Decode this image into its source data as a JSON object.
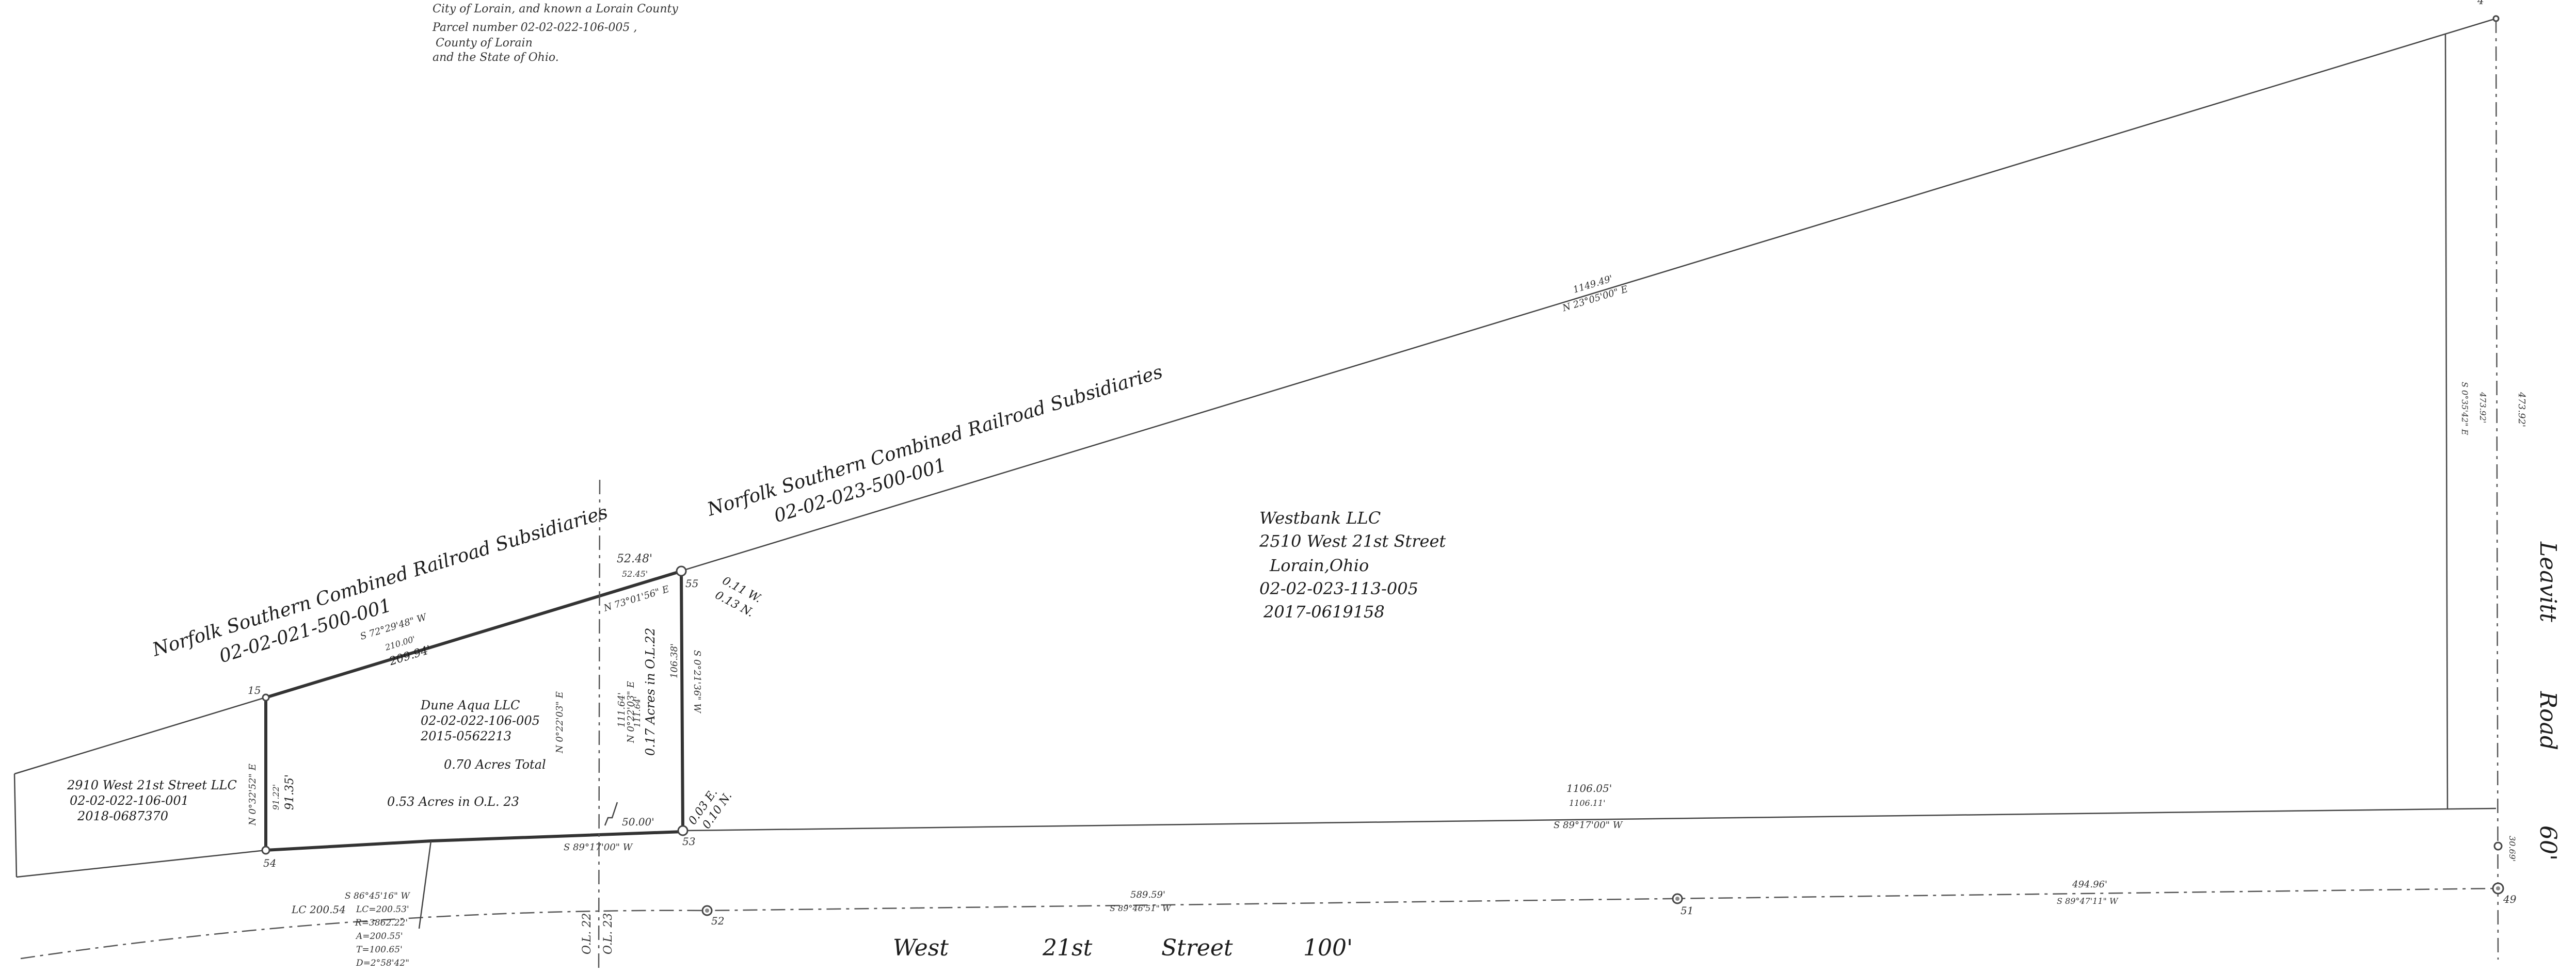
{
  "header_lines": [
    "City of Lorain, and known a Lorain County",
    "Parcel number 02-02-022-106-005 ,",
    "County of Lorain",
    "and the State of Ohio."
  ],
  "parcels": {
    "rr_west": {
      "name": "Norfolk Southern Combined Railroad Subsidiaries",
      "number": "02-02-021-500-001"
    },
    "rr_east": {
      "name": "Norfolk Southern Combined Railroad Subsidiaries",
      "number": "02-02-023-500-001"
    },
    "westbank": {
      "lines": [
        "Westbank LLC",
        "2510 West 21st Street",
        "Lorain,Ohio",
        "02-02-023-113-005",
        "2017-0619158"
      ]
    },
    "duneaqua": {
      "lines": [
        "Dune Aqua LLC",
        "02-02-022-106-005",
        "2015-0562213"
      ]
    },
    "west21st_llc": {
      "lines": [
        "2910 West 21st Street LLC",
        "02-02-022-106-001",
        "2018-0687370"
      ]
    }
  },
  "areas": {
    "total": "0.70 Acres Total",
    "ol23": "0.53 Acres in O.L. 23",
    "ol22": "0.17 Acres in O.L.22"
  },
  "lot_labels": {
    "ol22": "O.L. 22",
    "ol23": "O.L. 23"
  },
  "streets": {
    "west21st": {
      "w1": "West",
      "w2": "21st",
      "w3": "Street",
      "w4": "100'"
    },
    "leavitt": {
      "w1": "Leavitt",
      "w2": "Road",
      "w3": "60'"
    }
  },
  "stations": {
    "s15": "15",
    "s54": "54",
    "s53": "53",
    "s55": "55",
    "s52": "52",
    "s51": "51",
    "s49": "49",
    "s4": "4"
  },
  "dims": {
    "long_dist": "1149.49'",
    "long_bear": "N 23°05'00\" E",
    "rr_bear": "S 72°29'48\" W",
    "rr_dist_a": "210.00'",
    "rr_dist_b": "209.94'",
    "top_dist_a": "52.48'",
    "top_dist_b": "52.45'",
    "top_bear": "N 73°01'56\" E",
    "left_bear": "N 0°32'52\" E",
    "left_dist_a": "91.22'",
    "left_dist_b": "91.35'",
    "ctr_bear": "N 0°22'03\" E",
    "ctr_dist_a": "111.64'",
    "ctr_dist_b": "111.64'",
    "ctr_bear2": "N 0°22'03\" E",
    "east_bear": "S 0°21'36\" W",
    "east_dist": "106.38'",
    "offset_top_a": "0.11 W.",
    "offset_top_b": "0.13 N.",
    "offset_bot_a": "0.03 E.",
    "offset_bot_b": "0.10 N.",
    "bottom_short_dist": "50.00'",
    "bottom_bear": "S 89°17'00\" W",
    "long_bottom_a": "1106.05'",
    "long_bottom_b": "1106.11'",
    "long_bottom_bear": "S 89°17'00\" W",
    "curve_lc": "LC 200.54",
    "curve_1": "S 86°45'16\" W",
    "curve_2": "LC=200.53'",
    "curve_3": "R=3862.22'",
    "curve_4": "A=200.55'",
    "curve_5": "T=100.65'",
    "curve_6": "D=2°58'42\"",
    "street_dist": "589.59'",
    "street_bear": "S 89°46'51\" W",
    "right_dist": "494.96'",
    "right_bear": "S 89°47'11\" W",
    "far_right_a": "S 0°35'42\" E",
    "far_right_b": "473.92'",
    "far_right_c": "473.92'",
    "corner_dist": "30.69'"
  }
}
